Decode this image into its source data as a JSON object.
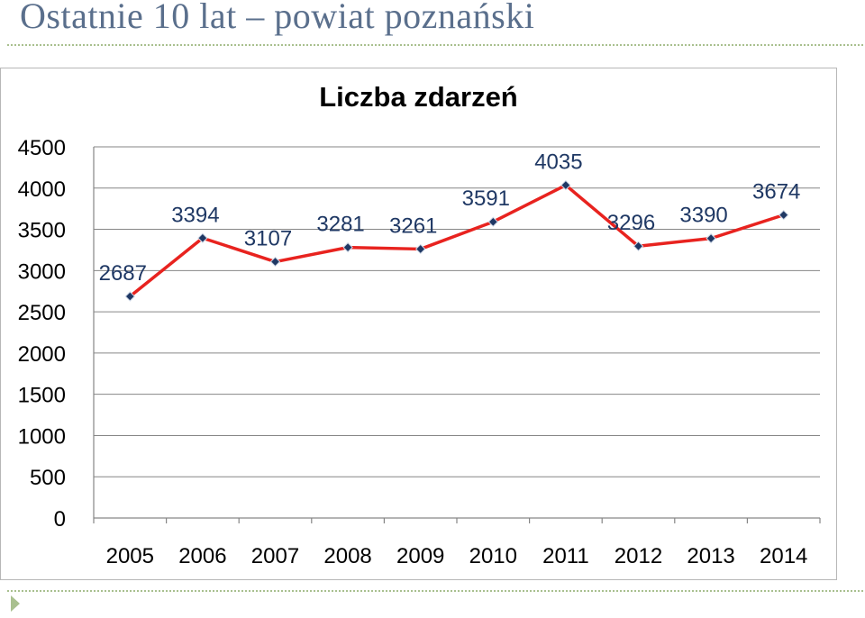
{
  "page": {
    "title": "Ostatnie 10 lat – powiat poznański"
  },
  "chart_data": {
    "type": "line",
    "title": "Liczba zdarzeń",
    "xlabel": "",
    "ylabel": "",
    "categories": [
      "2005",
      "2006",
      "2007",
      "2008",
      "2009",
      "2010",
      "2011",
      "2012",
      "2013",
      "2014"
    ],
    "series": [
      {
        "values": [
          2687,
          3394,
          3107,
          3281,
          3261,
          3591,
          4035,
          3296,
          3390,
          3674
        ],
        "color": "#e8231f",
        "marker_color": "#1f3864"
      }
    ],
    "y_ticks": [
      0,
      500,
      1000,
      1500,
      2000,
      2500,
      3000,
      3500,
      4000,
      4500
    ],
    "ylim": [
      0,
      4500
    ],
    "grid": true,
    "legend": false,
    "data_labels": true,
    "label_color": "#1f3864",
    "grid_color": "#868686"
  }
}
